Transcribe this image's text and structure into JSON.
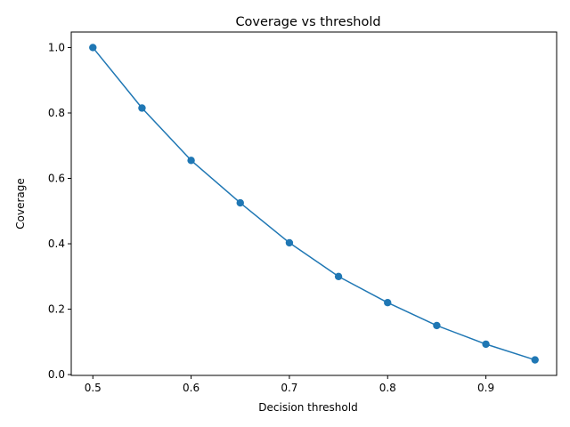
{
  "chart_data": {
    "type": "line",
    "title": "Coverage vs threshold",
    "xlabel": "Decision threshold",
    "ylabel": "Coverage",
    "xlim": [
      0.478,
      0.972
    ],
    "ylim": [
      -0.0025,
      1.0475
    ],
    "x_ticks": [
      0.5,
      0.6,
      0.7,
      0.8,
      0.9
    ],
    "x_tick_labels": [
      "0.5",
      "0.6",
      "0.7",
      "0.8",
      "0.9"
    ],
    "y_ticks": [
      0.0,
      0.2,
      0.4,
      0.6,
      0.8,
      1.0
    ],
    "y_tick_labels": [
      "0.0",
      "0.2",
      "0.4",
      "0.6",
      "0.8",
      "1.0"
    ],
    "grid": false,
    "legend": "none",
    "series": [
      {
        "color": "#1f77b4",
        "marker": "circle",
        "x": [
          0.5,
          0.55,
          0.6,
          0.65,
          0.7,
          0.75,
          0.8,
          0.85,
          0.9,
          0.95
        ],
        "y": [
          1.0,
          0.815,
          0.655,
          0.525,
          0.403,
          0.3,
          0.22,
          0.15,
          0.093,
          0.045
        ]
      }
    ]
  }
}
